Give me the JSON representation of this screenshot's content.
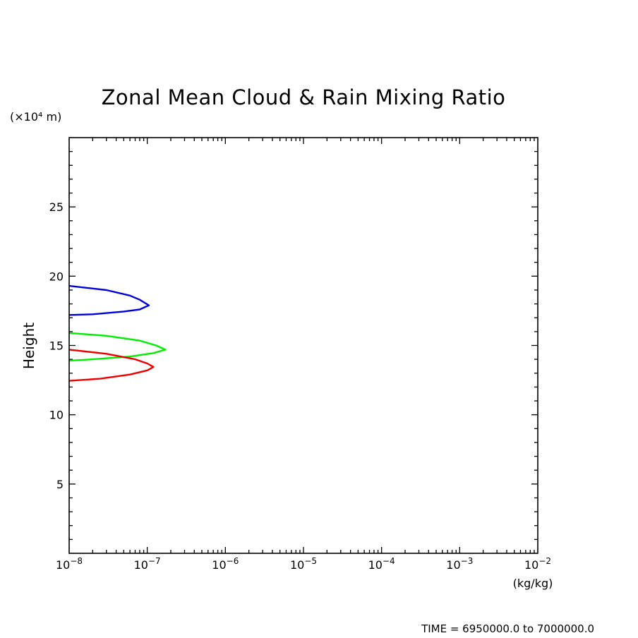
{
  "chart_data": {
    "type": "line",
    "title": "Zonal Mean Cloud & Rain Mixing Ratio",
    "ylabel": "Height",
    "y_unit": "(×10⁴ m)",
    "x_unit": "(kg/kg)",
    "x_scale": "log",
    "xlim": [
      1e-08,
      0.01
    ],
    "ylim": [
      0,
      30
    ],
    "x_tick_values": [
      1e-08,
      1e-07,
      1e-06,
      1e-05,
      0.0001,
      0.001,
      0.01
    ],
    "x_tick_exponents": [
      "−8",
      "−7",
      "−6",
      "−5",
      "−4",
      "−3",
      "−2"
    ],
    "x_tick_base": "10",
    "y_ticks": [
      "5",
      "10",
      "15",
      "20",
      "25"
    ],
    "grid": false,
    "series": [
      {
        "color": "#0000dd",
        "points": [
          [
            1e-08,
            19.3
          ],
          [
            3e-08,
            19.0
          ],
          [
            6e-08,
            18.6
          ],
          [
            8e-08,
            18.3
          ],
          [
            1.05e-07,
            17.9
          ],
          [
            8e-08,
            17.6
          ],
          [
            5e-08,
            17.45
          ],
          [
            2e-08,
            17.25
          ],
          [
            1e-08,
            17.2
          ]
        ]
      },
      {
        "color": "#00ee00",
        "points": [
          [
            1e-08,
            15.9
          ],
          [
            3e-08,
            15.7
          ],
          [
            8e-08,
            15.35
          ],
          [
            1.3e-07,
            15.0
          ],
          [
            1.7e-07,
            14.7
          ],
          [
            1.2e-07,
            14.45
          ],
          [
            6e-08,
            14.2
          ],
          [
            2e-08,
            14.0
          ],
          [
            1e-08,
            13.9
          ]
        ]
      },
      {
        "color": "#ee0000",
        "points": [
          [
            1e-08,
            14.7
          ],
          [
            3e-08,
            14.4
          ],
          [
            7e-08,
            14.0
          ],
          [
            1e-07,
            13.7
          ],
          [
            1.2e-07,
            13.45
          ],
          [
            1e-07,
            13.2
          ],
          [
            6e-08,
            12.9
          ],
          [
            2.5e-08,
            12.6
          ],
          [
            1e-08,
            12.45
          ]
        ]
      }
    ],
    "note": "TIME = 6950000.0 to 7000000.0"
  }
}
